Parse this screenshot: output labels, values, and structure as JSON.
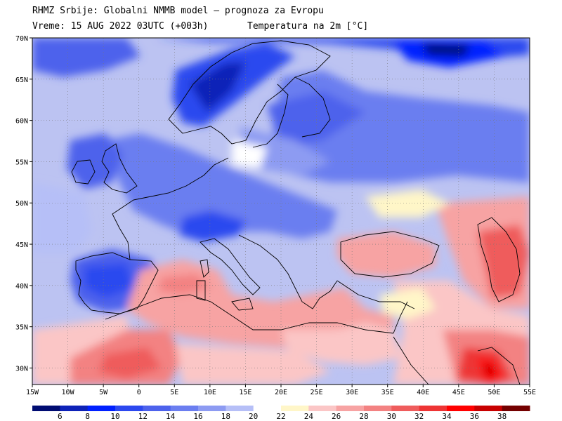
{
  "header": {
    "line1": "RHMZ Srbije: Globalni NMMB model — prognoza za Evropu",
    "line2_left": "Vreme: 15 AUG 2022 03UTC (+003h)",
    "line2_right": "Temperatura na 2m [°C]"
  },
  "map": {
    "lon_range": [
      -15,
      55
    ],
    "lat_range": [
      28,
      70
    ],
    "lon_ticks": [
      {
        "lon": -15,
        "label": "15W"
      },
      {
        "lon": -10,
        "label": "10W"
      },
      {
        "lon": -5,
        "label": "5W"
      },
      {
        "lon": 0,
        "label": "0"
      },
      {
        "lon": 5,
        "label": "5E"
      },
      {
        "lon": 10,
        "label": "10E"
      },
      {
        "lon": 15,
        "label": "15E"
      },
      {
        "lon": 20,
        "label": "20E"
      },
      {
        "lon": 25,
        "label": "25E"
      },
      {
        "lon": 30,
        "label": "30E"
      },
      {
        "lon": 35,
        "label": "35E"
      },
      {
        "lon": 40,
        "label": "40E"
      },
      {
        "lon": 45,
        "label": "45E"
      },
      {
        "lon": 50,
        "label": "50E"
      },
      {
        "lon": 55,
        "label": "55E"
      }
    ],
    "lat_ticks": [
      {
        "lat": 30,
        "label": "30N"
      },
      {
        "lat": 35,
        "label": "35N"
      },
      {
        "lat": 40,
        "label": "40N"
      },
      {
        "lat": 45,
        "label": "45N"
      },
      {
        "lat": 50,
        "label": "50N"
      },
      {
        "lat": 55,
        "label": "55N"
      },
      {
        "lat": 60,
        "label": "60N"
      },
      {
        "lat": 65,
        "label": "65N"
      },
      {
        "lat": 70,
        "label": "70N"
      }
    ],
    "gridlines": "dotted",
    "ocean_color": "#bcc3f2"
  },
  "colorbar": {
    "bins": [
      {
        "min": 4,
        "max": 6,
        "color": "#000c72"
      },
      {
        "min": 6,
        "max": 8,
        "color": "#0d22b8"
      },
      {
        "min": 8,
        "max": 10,
        "color": "#0020ff"
      },
      {
        "min": 10,
        "max": 12,
        "color": "#2c48ef"
      },
      {
        "min": 12,
        "max": 14,
        "color": "#4d62ec"
      },
      {
        "min": 14,
        "max": 16,
        "color": "#6b7ef0"
      },
      {
        "min": 16,
        "max": 18,
        "color": "#8d9bf2"
      },
      {
        "min": 18,
        "max": 20,
        "color": "#b6bff7"
      },
      {
        "min": 20,
        "max": 22,
        "color": "#ffffff"
      },
      {
        "min": 22,
        "max": 24,
        "color": "#fff6c8"
      },
      {
        "min": 24,
        "max": 26,
        "color": "#fbc6c6"
      },
      {
        "min": 26,
        "max": 28,
        "color": "#f7a3a3"
      },
      {
        "min": 28,
        "max": 30,
        "color": "#f38282"
      },
      {
        "min": 30,
        "max": 32,
        "color": "#ef5c5c"
      },
      {
        "min": 32,
        "max": 34,
        "color": "#ee3434"
      },
      {
        "min": 34,
        "max": 36,
        "color": "#ff0000"
      },
      {
        "min": 36,
        "max": 38,
        "color": "#c80000"
      },
      {
        "min": 38,
        "max": 40,
        "color": "#740000"
      }
    ],
    "tick_labels": [
      "6",
      "8",
      "10",
      "12",
      "14",
      "16",
      "18",
      "20",
      "22",
      "24",
      "26",
      "28",
      "30",
      "32",
      "34",
      "36",
      "38"
    ]
  }
}
